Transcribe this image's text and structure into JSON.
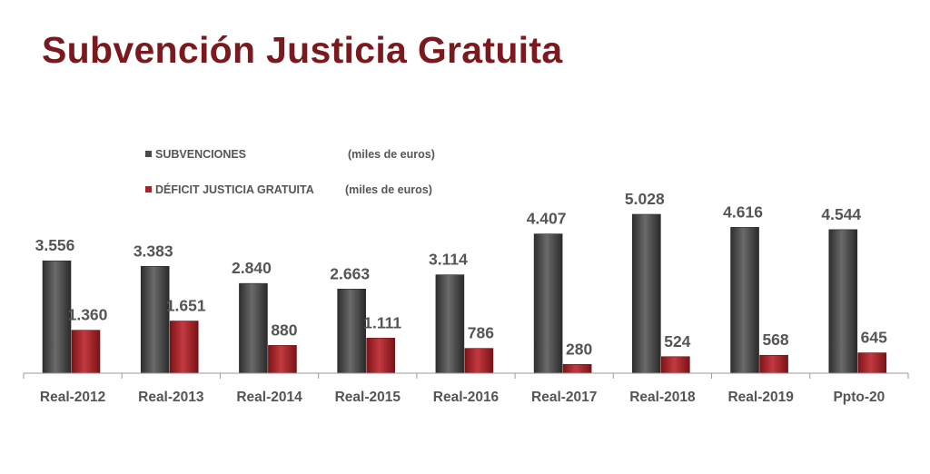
{
  "title": "Subvención Justicia Gratuita",
  "chart_data": {
    "type": "bar",
    "title": "Subvención Justicia Gratuita",
    "categories": [
      "Real-2012",
      "Real-2013",
      "Real-2014",
      "Real-2015",
      "Real-2016",
      "Real-2017",
      "Real-2018",
      "Real-2019",
      "Ppto-20"
    ],
    "series": [
      {
        "name": "SUBVENCIONES",
        "unit": "(miles de euros)",
        "color": "#4a4a4a",
        "values": [
          3556,
          3383,
          2840,
          2663,
          3114,
          4407,
          5028,
          4616,
          4544
        ],
        "labels": [
          "3.556",
          "3.383",
          "2.840",
          "2.663",
          "3.114",
          "4.407",
          "5.028",
          "4.616",
          "4.544"
        ]
      },
      {
        "name": "DÉFICIT JUSTICIA GRATUITA",
        "unit": "(miles de euros)",
        "color": "#a8232a",
        "values": [
          1360,
          1651,
          880,
          1111,
          786,
          280,
          524,
          568,
          645
        ],
        "labels": [
          "1.360",
          "1.651",
          "880",
          "1.111",
          "786",
          "280",
          "524",
          "568",
          "645"
        ]
      }
    ],
    "grid": false,
    "legend_position": "top-left"
  }
}
